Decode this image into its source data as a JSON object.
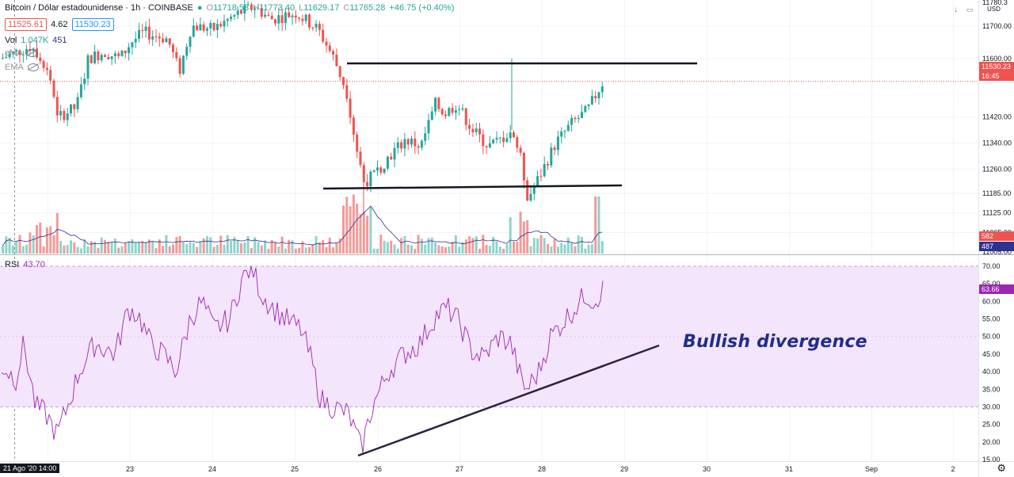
{
  "header": {
    "symbol_title": "Bitcoin / Dólar estadounidense · 1h · COINBASE",
    "ohlc": {
      "o_label": "O",
      "o": "11718.53",
      "h_label": "H",
      "h": "11773.40",
      "l_label": "L",
      "l": "11629.17",
      "c_label": "C",
      "c": "11765.28",
      "change": "+46.75 (+0.40%)"
    },
    "bid": "11525.61",
    "spread": "4.62",
    "ask": "11530.23",
    "volume_label": "Vol",
    "volume_value": "1.047K",
    "volume_ma": "451",
    "ema1_label": "eMA",
    "ema2_label": "EMA"
  },
  "currency": "USD",
  "price_axis": {
    "labels": [
      "11700.00",
      "11600.00",
      "11420.00",
      "11340.00",
      "11260.00",
      "11185.00",
      "11125.00",
      "11065.00",
      "11005.00"
    ],
    "top_clip": "11780.3"
  },
  "price_tags": {
    "last": "11530.23",
    "countdown": "16:45",
    "vol": "582",
    "vol_ma": "487",
    "rsi": "63.66"
  },
  "rsi": {
    "label": "RSI",
    "value": "43.70",
    "axis": [
      "70.00",
      "65.00",
      "60.00",
      "55.00",
      "50.00",
      "45.00",
      "40.00",
      "35.00",
      "30.00",
      "25.00",
      "20.00",
      "15.00"
    ]
  },
  "time_axis": {
    "ticks": [
      "23",
      "24",
      "25",
      "26",
      "27",
      "28",
      "29",
      "30",
      "31",
      "Sep",
      "2"
    ],
    "cursor_label": "21 Ago '20  14:00"
  },
  "annotation": "Bullish divergence",
  "colors": {
    "up": "#26a69a",
    "down": "#ef5350",
    "rsi_line": "#9c27b0",
    "rsi_band": "#f3e5fb",
    "vol_ma": "#2e3192",
    "trendline": "#131722",
    "annotation": "#1f2e8c"
  },
  "chart_data": [
    {
      "type": "line",
      "title": "Bitcoin / Dólar estadounidense · 1h · COINBASE",
      "x": [
        "22",
        "22",
        "22",
        "23",
        "23",
        "24",
        "24",
        "25",
        "25",
        "25",
        "26",
        "26",
        "26",
        "27",
        "27",
        "27",
        "28",
        "28",
        "28"
      ],
      "series": [
        {
          "values": [
            11600,
            11560,
            11420,
            11600,
            11640,
            11650,
            11690,
            11760,
            11720,
            11650,
            11220,
            11180,
            11290,
            11350,
            11480,
            11380,
            11330,
            11170,
            11530
          ]
        }
      ],
      "ylim": [
        11000,
        11780
      ]
    },
    {
      "type": "line",
      "title": "RSI",
      "x": [
        "22",
        "22",
        "23",
        "23",
        "24",
        "24",
        "25",
        "25",
        "26",
        "26",
        "27",
        "27",
        "28",
        "28",
        "28"
      ],
      "series": [
        {
          "name": "RSI",
          "values": [
            42,
            25,
            48,
            58,
            42,
            57,
            70,
            60,
            40,
            18,
            45,
            58,
            47,
            34,
            63.66
          ]
        }
      ],
      "ylim": [
        15,
        70
      ]
    }
  ]
}
